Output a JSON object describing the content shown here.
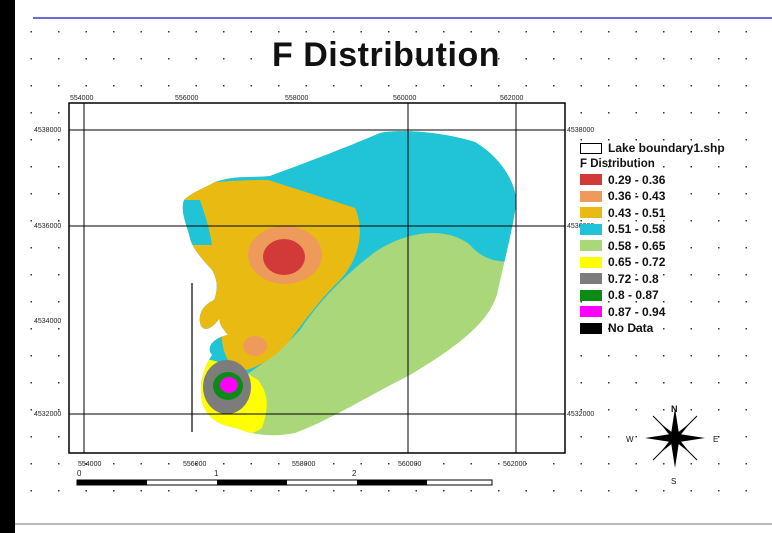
{
  "map": {
    "title": "F Distribution",
    "top_ticks": [
      "554000",
      "556000",
      "558000",
      "560000",
      "562000"
    ],
    "bottom_ticks": [
      "554000",
      "556000",
      "558000",
      "560000",
      "562000"
    ],
    "left_ticks": [
      "4538000",
      "4536000",
      "4534000",
      "4532000"
    ],
    "right_ticks": [
      "4538000",
      "4536000",
      "4532000"
    ],
    "scale_labels": [
      "0",
      "1",
      "2"
    ],
    "compass": {
      "north": "N",
      "west": "W",
      "east": "E",
      "south": "S"
    }
  },
  "legend": {
    "boundary_label": "Lake boundary1.shp",
    "heading": "F Distribution",
    "classes": [
      {
        "label": "0.29 - 0.36",
        "color": "#d23a3a"
      },
      {
        "label": "0.36 - 0.43",
        "color": "#ee9a5a"
      },
      {
        "label": "0.43 - 0.51",
        "color": "#e9bb12"
      },
      {
        "label": "0.51 - 0.58",
        "color": "#20c4d6"
      },
      {
        "label": "0.58 - 0.65",
        "color": "#a9d77a"
      },
      {
        "label": "0.65 - 0.72",
        "color": "#ffff00"
      },
      {
        "label": "0.72 - 0.8",
        "color": "#7c7c7c"
      },
      {
        "label": "0.8 - 0.87",
        "color": "#0b8a16"
      },
      {
        "label": "0.87 - 0.94",
        "color": "#ff00ff"
      },
      {
        "label": "No Data",
        "color": "#000000"
      }
    ]
  }
}
